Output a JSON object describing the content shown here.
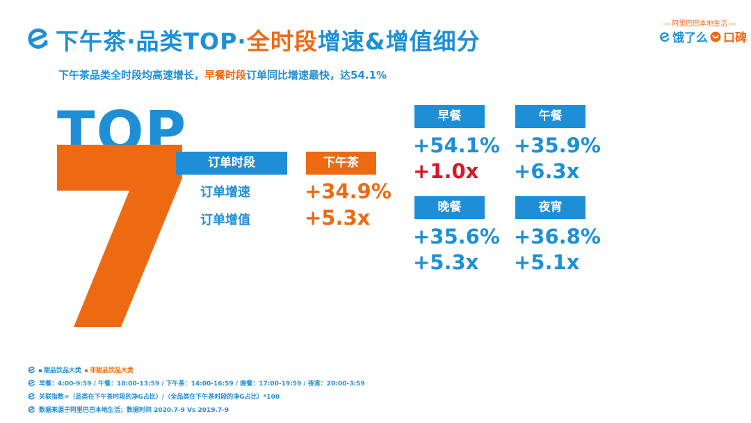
{
  "title": {
    "part1": "下午茶·品类TOP·",
    "part2": "全时段",
    "part3": "增速&增值细分"
  },
  "subtitle": {
    "part1": "下午茶品类全时段均高速增长，",
    "part2": "早餐时段",
    "part3": "订单同比增速最快，达54.1%"
  },
  "brand": {
    "tag": "阿里巴巴本地生活",
    "eleme": "饿了么",
    "koubei": "口碑"
  },
  "top_rank": {
    "word": "TOP",
    "number": "7"
  },
  "labels": {
    "period": "订单时段",
    "growth": "订单增速",
    "value": "订单增值"
  },
  "afternoon_tea": {
    "label": "下午茶",
    "growth": "+34.9%",
    "value": "+5.3x"
  },
  "meals": [
    {
      "label": "早餐",
      "growth": "+54.1%",
      "value": "+1.0x",
      "value_color": "#d6182a"
    },
    {
      "label": "午餐",
      "growth": "+35.9%",
      "value": "+6.3x",
      "value_color": "#1e8fd6"
    },
    {
      "label": "晚餐",
      "growth": "+35.6%",
      "value": "+5.3x",
      "value_color": "#1e8fd6"
    },
    {
      "label": "夜宵",
      "growth": "+36.8%",
      "value": "+5.1x",
      "value_color": "#1e8fd6"
    }
  ],
  "footer": {
    "legend_sweet": "甜品饮品大类",
    "legend_non_sweet": "非甜品饮品大类",
    "time_ranges": "早餐：4:00-9:59 / 午餐：10:00-13:59 / 下午茶：14:00-16:59 / 晚餐：17:00-19:59 / 夜宵：20:00-3:59",
    "index_formula": "关联指数=（品类在下午茶时段的净G占比）/（全品类在下午茶时段的净G占比）*100",
    "source": "数据来源于阿里巴巴本地生活；数据时间 2020.7-9 Vs 2019.7-9"
  },
  "colors": {
    "blue": "#1e8fd6",
    "orange": "#ee6a12",
    "red": "#d6182a"
  },
  "icons": {
    "title_logo": "eleme-logo-icon",
    "footer_bullet": "eleme-logo-icon",
    "koubei": "koubei-logo-icon"
  }
}
